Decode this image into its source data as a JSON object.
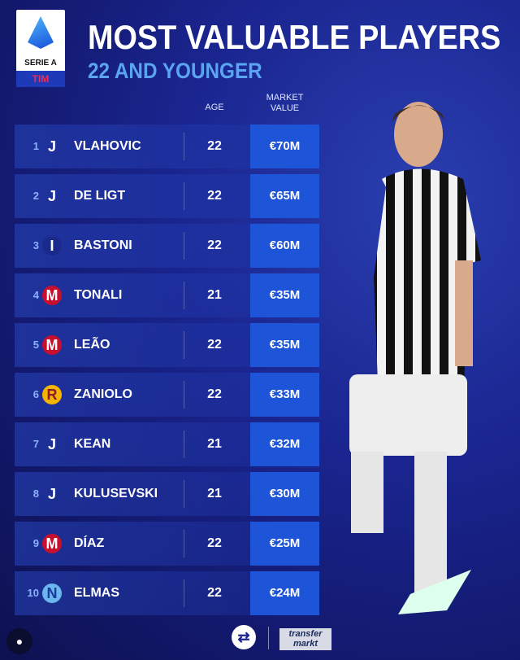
{
  "header": {
    "league_logo_text": "SERIE A",
    "sponsor_logo_text": "TIM",
    "title": "MOST VALUABLE PLAYERS",
    "subtitle": "22 AND YOUNGER"
  },
  "columns": {
    "age": "AGE",
    "market_value_line1": "MARKET",
    "market_value_line2": "VALUE"
  },
  "colors": {
    "accent": "#1e55d8",
    "subtitle": "#5aa4f0",
    "background": "#1a2590"
  },
  "players": [
    {
      "rank": "1",
      "club_icon": "juventus-crest",
      "name": "VLAHOVIC",
      "age": "22",
      "value": "€70M"
    },
    {
      "rank": "2",
      "club_icon": "juventus-crest",
      "name": "DE LIGT",
      "age": "22",
      "value": "€65M"
    },
    {
      "rank": "3",
      "club_icon": "inter-crest",
      "name": "BASTONI",
      "age": "22",
      "value": "€60M"
    },
    {
      "rank": "4",
      "club_icon": "milan-crest",
      "name": "TONALI",
      "age": "21",
      "value": "€35M"
    },
    {
      "rank": "5",
      "club_icon": "milan-crest",
      "name": "LEÃO",
      "age": "22",
      "value": "€35M"
    },
    {
      "rank": "6",
      "club_icon": "roma-crest",
      "name": "ZANIOLO",
      "age": "22",
      "value": "€33M"
    },
    {
      "rank": "7",
      "club_icon": "juventus-crest",
      "name": "KEAN",
      "age": "21",
      "value": "€32M"
    },
    {
      "rank": "8",
      "club_icon": "juventus-crest",
      "name": "KULUSEVSKI",
      "age": "21",
      "value": "€30M"
    },
    {
      "rank": "9",
      "club_icon": "milan-crest",
      "name": "DÍAZ",
      "age": "22",
      "value": "€25M"
    },
    {
      "rank": "10",
      "club_icon": "napoli-crest",
      "name": "ELMAS",
      "age": "22",
      "value": "€24M"
    }
  ],
  "footer": {
    "transfermarkt_logo_text": "transfer markt"
  }
}
